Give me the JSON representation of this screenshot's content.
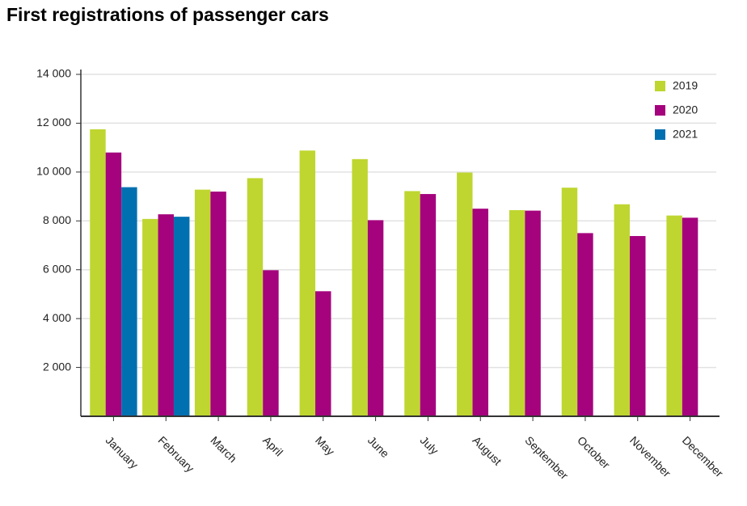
{
  "chart_data": {
    "type": "bar",
    "title": "First registrations of passenger cars",
    "categories": [
      "January",
      "February",
      "March",
      "April",
      "May",
      "June",
      "July",
      "August",
      "September",
      "October",
      "November",
      "December"
    ],
    "series": [
      {
        "name": "2019",
        "color": "#bfd630",
        "values": [
          11750,
          8080,
          9280,
          9750,
          10880,
          10530,
          9220,
          9980,
          8440,
          9360,
          8680,
          8220
        ]
      },
      {
        "name": "2020",
        "color": "#a5027d",
        "values": [
          10800,
          8270,
          9200,
          5980,
          5120,
          8030,
          9100,
          8500,
          8420,
          7500,
          7380,
          8130
        ]
      },
      {
        "name": "2021",
        "color": "#0070b0",
        "values": [
          9380,
          8170,
          null,
          null,
          null,
          null,
          null,
          null,
          null,
          null,
          null,
          null
        ]
      }
    ],
    "ylim": [
      0,
      14000
    ],
    "yticks": [
      {
        "value": 2000,
        "label": "2 000"
      },
      {
        "value": 4000,
        "label": "4 000"
      },
      {
        "value": 6000,
        "label": "6 000"
      },
      {
        "value": 8000,
        "label": "8 000"
      },
      {
        "value": 10000,
        "label": "10 000"
      },
      {
        "value": 12000,
        "label": "12 000"
      },
      {
        "value": 14000,
        "label": "14 000"
      }
    ],
    "grid": true,
    "legend": "top-right"
  }
}
